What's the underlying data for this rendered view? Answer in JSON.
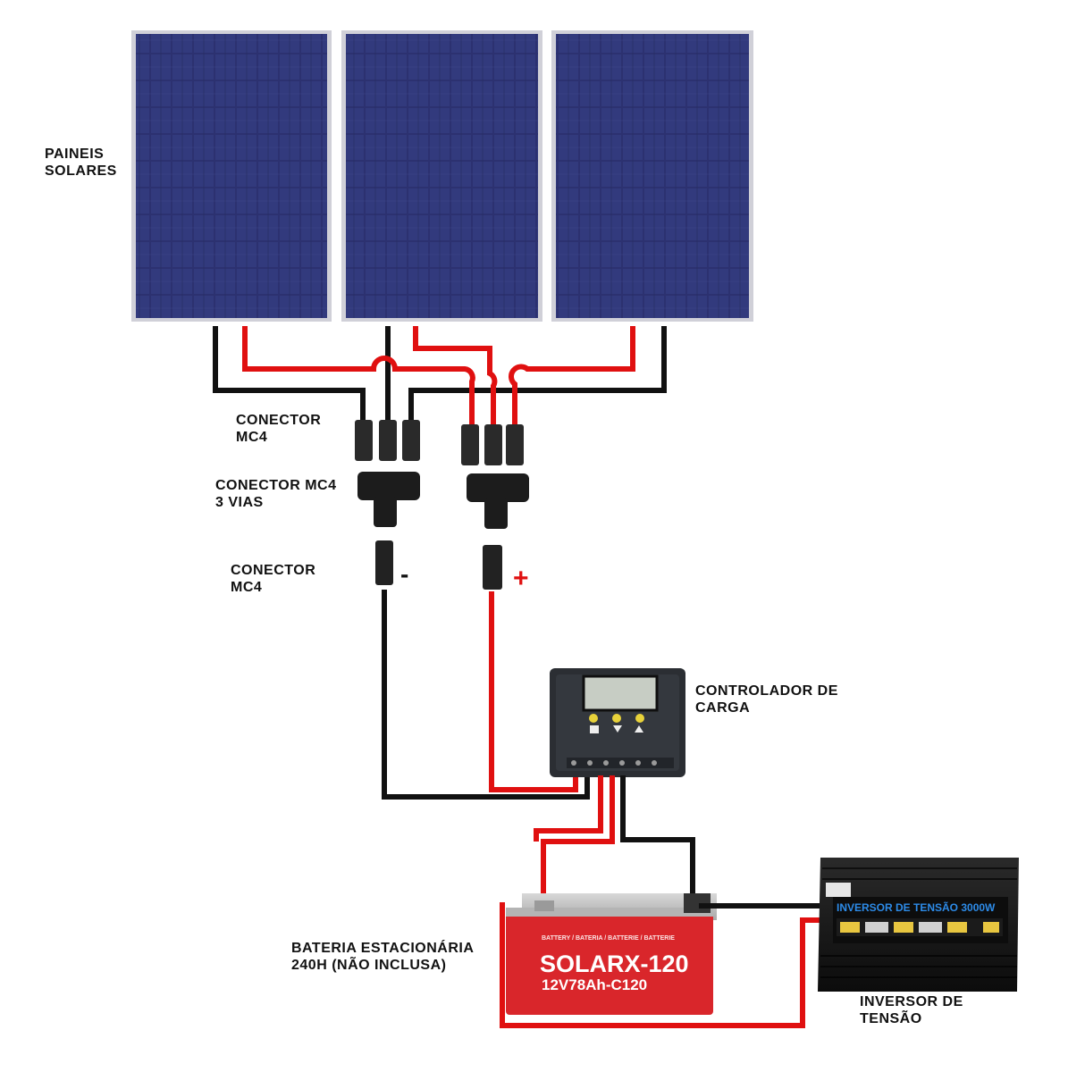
{
  "labels": {
    "paineis": [
      "PAINEIS",
      "SOLARES"
    ],
    "conector_top": [
      "CONECTOR",
      "MC4"
    ],
    "conector_3vias": [
      "CONECTOR MC4",
      "3 VIAS"
    ],
    "conector_bottom": [
      "CONECTOR",
      "MC4"
    ],
    "controlador": [
      "CONTROLADOR DE",
      "CARGA"
    ],
    "bateria": [
      "BATERIA ESTACIONÁRIA",
      "240H (NÃO INCLUSA)"
    ],
    "inversor": [
      "INVERSOR DE",
      "TENSÃO"
    ]
  },
  "polarity": {
    "negative": "-",
    "positive": "+"
  },
  "battery": {
    "brand": "SOLARX-120",
    "spec": "12V78Ah-C120",
    "top_line": "BATTERY / BATERIA / BATTERIE / BATTERIE"
  },
  "inverter": {
    "title": "INVERSOR DE TENSÃO 3000W"
  },
  "colors": {
    "wire_positive": "#e01010",
    "wire_negative": "#111111",
    "panel_cell": "#2a2f6b",
    "panel_frame": "#c8c8d0",
    "battery_body": "#d9262b",
    "inverter_body": "#151515",
    "inverter_label": "#1f6fd0"
  }
}
